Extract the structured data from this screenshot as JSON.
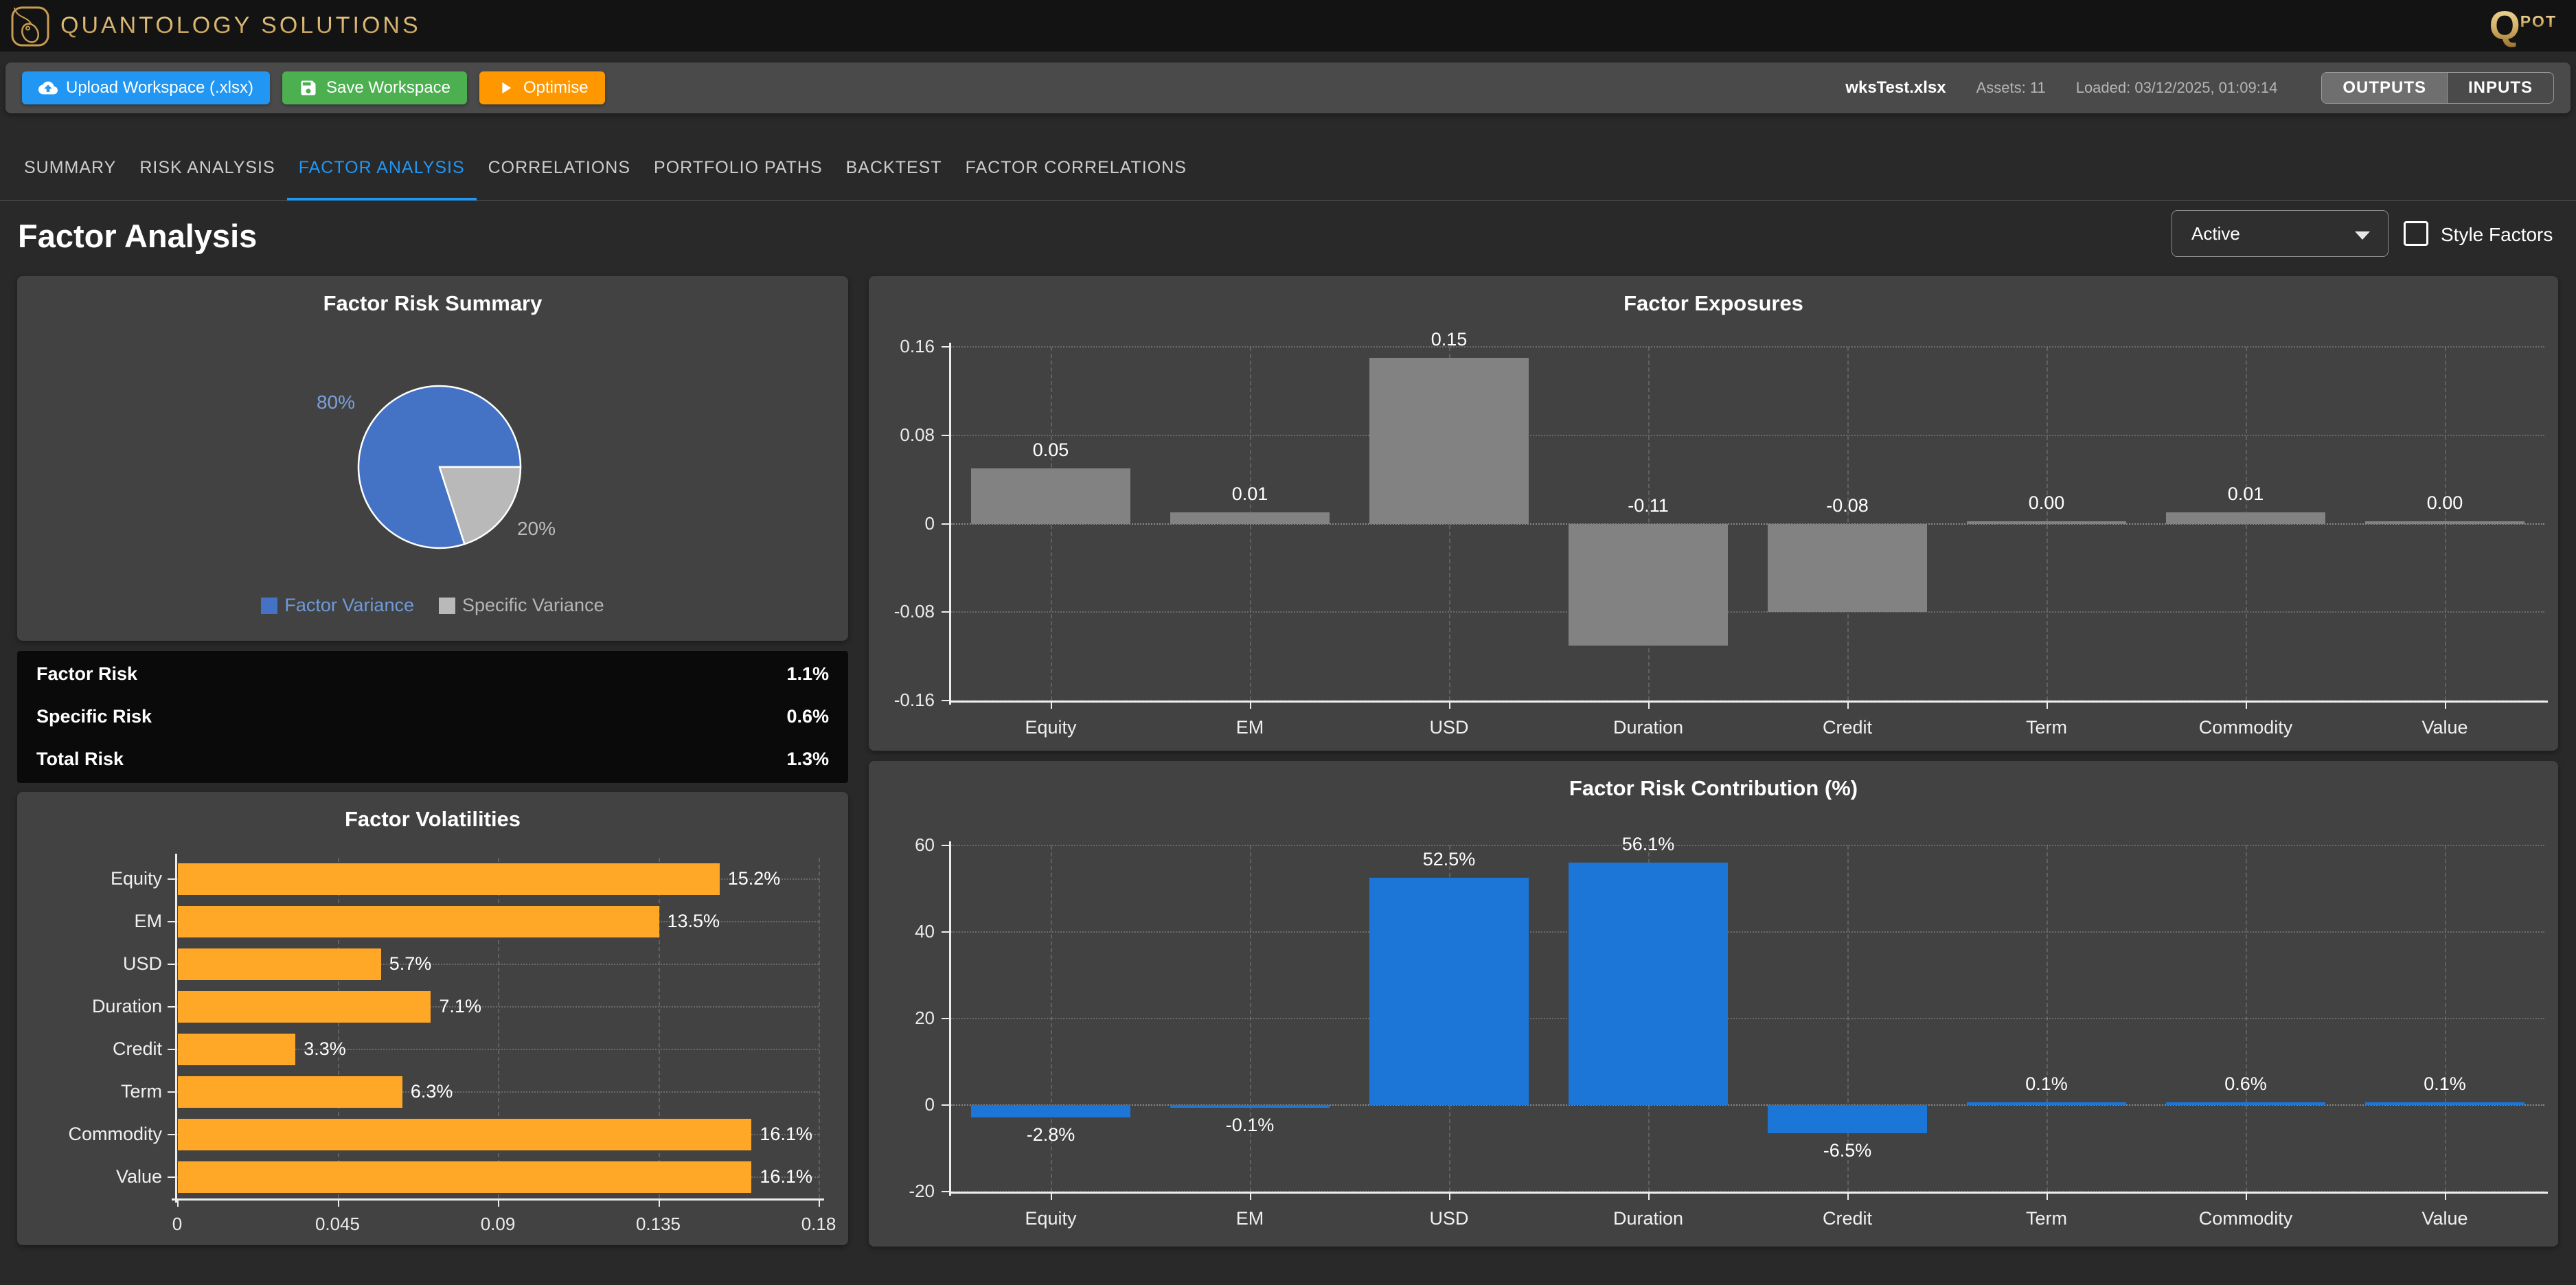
{
  "header": {
    "brand": "QUANTOLOGY SOLUTIONS",
    "qpot_q": "Q",
    "qpot_rest": "POT"
  },
  "toolbar": {
    "upload_label": "Upload Workspace (.xlsx)",
    "save_label": "Save Workspace",
    "optimise_label": "Optimise",
    "file_name": "wksTest.xlsx",
    "assets": "Assets: 11",
    "loaded": "Loaded: 03/12/2025, 01:09:14",
    "outputs_label": "OUTPUTS",
    "inputs_label": "INPUTS"
  },
  "tabs": [
    {
      "label": "SUMMARY",
      "active": false
    },
    {
      "label": "RISK ANALYSIS",
      "active": false
    },
    {
      "label": "FACTOR ANALYSIS",
      "active": true
    },
    {
      "label": "CORRELATIONS",
      "active": false
    },
    {
      "label": "PORTFOLIO PATHS",
      "active": false
    },
    {
      "label": "BACKTEST",
      "active": false
    },
    {
      "label": "FACTOR CORRELATIONS",
      "active": false
    }
  ],
  "page": {
    "title": "Factor Analysis",
    "mode_value": "Active",
    "style_factors_label": "Style Factors"
  },
  "risk_table": {
    "rows": [
      {
        "label": "Factor Risk",
        "value": "1.1%"
      },
      {
        "label": "Specific Risk",
        "value": "0.6%"
      },
      {
        "label": "Total Risk",
        "value": "1.3%"
      }
    ]
  },
  "colors": {
    "accent_blue": "#2196f3",
    "button_green": "#4caf50",
    "button_orange": "#ff9800",
    "brand_gold": "#d9b56c",
    "pie_blue": "#4472c4",
    "pie_gray": "#b9b9b9",
    "bar_gray": "#828282",
    "bar_orange": "#ffa726",
    "bar_blue": "#1b76d8"
  },
  "chart_data": [
    {
      "type": "pie",
      "title": "Factor Risk Summary",
      "labels": [
        "Factor Variance",
        "Specific Variance"
      ],
      "values": [
        80,
        20
      ],
      "colors": [
        "#4472c4",
        "#b9b9b9"
      ],
      "slice_labels": [
        "80%",
        "20%"
      ],
      "slice_label_colors": [
        "#7aa0dc",
        "#bdbdbd"
      ],
      "legend_text_colors": [
        "#6f9ad8",
        "#b5b5b5"
      ],
      "legend_position": "bottom"
    },
    {
      "type": "bar",
      "title": "Factor Exposures",
      "categories": [
        "Equity",
        "EM",
        "USD",
        "Duration",
        "Credit",
        "Term",
        "Commodity",
        "Value"
      ],
      "values": [
        0.05,
        0.01,
        0.15,
        -0.11,
        -0.08,
        0.0,
        0.01,
        0.0
      ],
      "value_labels": [
        "0.05",
        "0.01",
        "0.15",
        "-0.11",
        "-0.08",
        "0.00",
        "0.01",
        "0.00"
      ],
      "ylim": [
        -0.16,
        0.16
      ],
      "yticks": [
        0.16,
        0.08,
        0,
        -0.08,
        -0.16
      ],
      "ytick_labels": [
        "0.16",
        "0.08",
        "0",
        "-0.08",
        "-0.16"
      ],
      "bar_color": "#828282",
      "grid": true
    },
    {
      "type": "hbar",
      "title": "Factor Volatilities",
      "categories": [
        "Equity",
        "EM",
        "USD",
        "Duration",
        "Credit",
        "Term",
        "Commodity",
        "Value"
      ],
      "values": [
        0.152,
        0.135,
        0.057,
        0.071,
        0.033,
        0.063,
        0.161,
        0.161
      ],
      "value_labels": [
        "15.2%",
        "13.5%",
        "5.7%",
        "7.1%",
        "3.3%",
        "6.3%",
        "16.1%",
        "16.1%"
      ],
      "xlim": [
        0,
        0.18
      ],
      "xticks": [
        0,
        0.045,
        0.09,
        0.135,
        0.18
      ],
      "xtick_labels": [
        "0",
        "0.045",
        "0.09",
        "0.135",
        "0.18"
      ],
      "bar_color": "#ffa726",
      "grid": true
    },
    {
      "type": "bar",
      "title": "Factor Risk Contribution (%)",
      "categories": [
        "Equity",
        "EM",
        "USD",
        "Duration",
        "Credit",
        "Term",
        "Commodity",
        "Value"
      ],
      "values": [
        -2.8,
        -0.1,
        52.5,
        56.1,
        -6.5,
        0.1,
        0.6,
        0.1
      ],
      "value_labels": [
        "-2.8%",
        "-0.1%",
        "52.5%",
        "56.1%",
        "-6.5%",
        "0.1%",
        "0.6%",
        "0.1%"
      ],
      "ylim": [
        -20,
        60
      ],
      "yticks": [
        60,
        40,
        20,
        0,
        -20
      ],
      "ytick_labels": [
        "60",
        "40",
        "20",
        "0",
        "-20"
      ],
      "bar_color": "#1b76d8",
      "grid": true
    }
  ]
}
